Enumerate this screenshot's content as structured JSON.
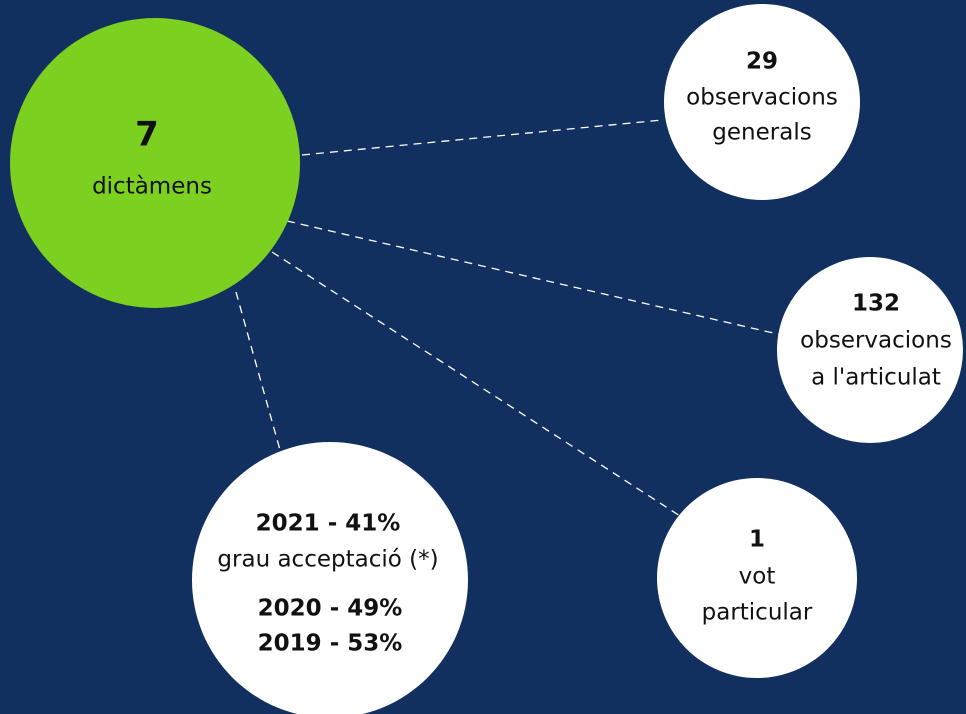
{
  "nodes": [
    {
      "number": "7",
      "lines": [
        "dictàmens"
      ]
    },
    {
      "number": "29",
      "lines": [
        "observacions",
        "generals"
      ]
    },
    {
      "number": "132",
      "lines": [
        "observacions",
        "a l'articulat"
      ]
    },
    {
      "number": "1",
      "lines": [
        "vot",
        "particular"
      ]
    },
    {
      "number": "2021 - 41%",
      "lines": [
        "grau acceptació (*)"
      ],
      "extra": [
        "2020 - 49%",
        "2019 - 53%"
      ]
    }
  ]
}
